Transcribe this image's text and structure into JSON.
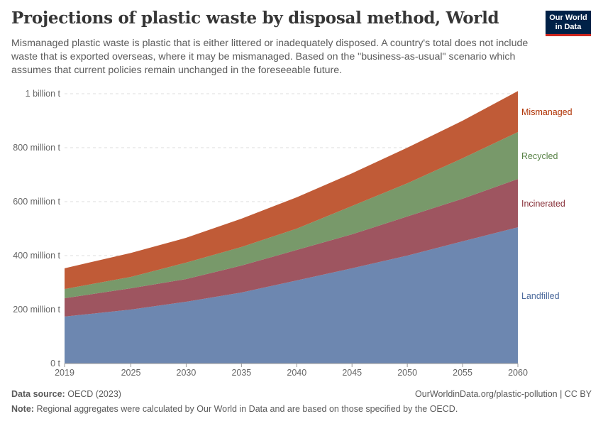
{
  "title": "Projections of plastic waste by disposal method, World",
  "subtitle": "Mismanaged plastic waste is plastic that is either littered or inadequately disposed. A country's total does not include waste that is exported overseas, where it may be mismanaged. Based on the \"business-as-usual\" scenario which assumes that current policies remain unchanged in the foreseeable future.",
  "logo": "Our World in Data",
  "footer": {
    "source_label": "Data source:",
    "source": "OECD (2023)",
    "url": "OurWorldinData.org/plastic-pollution | CC BY",
    "note_label": "Note:",
    "note": "Regional aggregates were calculated by Our World in Data and are based on those specified by the OECD."
  },
  "chart_data": {
    "type": "area",
    "stacked": true,
    "x": [
      2019,
      2025,
      2030,
      2035,
      2040,
      2045,
      2050,
      2055,
      2060
    ],
    "xticks": [
      "2019",
      "2025",
      "2030",
      "2035",
      "2040",
      "2045",
      "2050",
      "2055",
      "2060"
    ],
    "ylim": [
      0,
      1000
    ],
    "yunit": "million t",
    "yticks": [
      {
        "v": 0,
        "label": "0 t"
      },
      {
        "v": 200,
        "label": "200 million t"
      },
      {
        "v": 400,
        "label": "400 million t"
      },
      {
        "v": 600,
        "label": "600 million t"
      },
      {
        "v": 800,
        "label": "800 million t"
      },
      {
        "v": 1000,
        "label": "1 billion t"
      }
    ],
    "grid": true,
    "legend": "right, inline labels",
    "series": [
      {
        "name": "Landfilled",
        "color": "#6d87b0",
        "label_color": "#4c6a9c",
        "values": [
          174,
          200,
          229,
          263,
          308,
          353,
          400,
          453,
          505
        ]
      },
      {
        "name": "Incinerated",
        "color": "#9e5560",
        "label_color": "#883039",
        "values": [
          68,
          79,
          84,
          100,
          113,
          126,
          145,
          158,
          179
        ]
      },
      {
        "name": "Recycled",
        "color": "#78996a",
        "label_color": "#578145",
        "values": [
          34,
          42,
          61,
          69,
          79,
          105,
          123,
          150,
          174
        ]
      },
      {
        "name": "Mismanaged",
        "color": "#c05b37",
        "label_color": "#b13507",
        "values": [
          77,
          89,
          92,
          105,
          116,
          121,
          132,
          139,
          152
        ]
      }
    ]
  }
}
